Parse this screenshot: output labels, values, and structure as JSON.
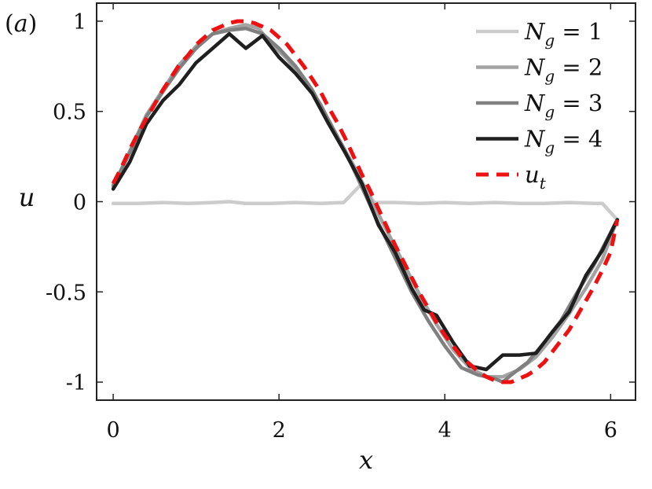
{
  "panel_label": {
    "open": "(",
    "letter": "a",
    "close": ")"
  },
  "chart_data": {
    "type": "line",
    "xlabel": "x",
    "ylabel": "u",
    "xlim": [
      -0.2,
      6.3
    ],
    "ylim": [
      -1.1,
      1.1
    ],
    "xticks": [
      0,
      2,
      4,
      6
    ],
    "xtick_labels": [
      "0",
      "2",
      "4",
      "6"
    ],
    "yticks": [
      -1,
      -0.5,
      0,
      0.5,
      1
    ],
    "ytick_labels": [
      "-1",
      "-0.5",
      "0",
      "0.5",
      "1"
    ],
    "grid": false,
    "legend_position": "top-right",
    "series": [
      {
        "name": {
          "main": "N",
          "sub": "g",
          "rest": " = 1"
        },
        "color": "#cccccc",
        "dash": "solid",
        "x": [
          0.0,
          0.3,
          0.6,
          0.9,
          1.2,
          1.4,
          1.6,
          1.9,
          2.2,
          2.5,
          2.78,
          3.0,
          3.15,
          3.4,
          3.7,
          4.0,
          4.3,
          4.6,
          4.9,
          5.2,
          5.5,
          5.8,
          5.9,
          6.08
        ],
        "y": [
          -0.01,
          -0.01,
          -0.005,
          -0.01,
          -0.005,
          0.0,
          -0.01,
          -0.01,
          -0.005,
          -0.01,
          -0.005,
          0.1,
          -0.005,
          -0.005,
          -0.01,
          -0.005,
          -0.01,
          -0.005,
          -0.01,
          -0.01,
          -0.005,
          -0.01,
          -0.01,
          -0.1
        ]
      },
      {
        "name": {
          "main": "N",
          "sub": "g",
          "rest": " = 2"
        },
        "color": "#a3a3a3",
        "dash": "solid",
        "x": [
          0.0,
          0.2,
          0.4,
          0.6,
          0.8,
          1.0,
          1.2,
          1.4,
          1.6,
          1.75,
          1.9,
          2.1,
          2.3,
          2.5,
          2.7,
          2.9,
          3.1,
          3.3,
          3.5,
          3.7,
          3.9,
          4.1,
          4.3,
          4.5,
          4.7,
          4.9,
          5.1,
          5.3,
          5.5,
          5.7,
          5.9,
          6.08
        ],
        "y": [
          0.08,
          0.28,
          0.48,
          0.62,
          0.76,
          0.86,
          0.93,
          0.96,
          0.98,
          0.96,
          0.88,
          0.79,
          0.67,
          0.54,
          0.36,
          0.2,
          0.02,
          -0.16,
          -0.34,
          -0.52,
          -0.68,
          -0.82,
          -0.92,
          -0.97,
          -0.97,
          -0.93,
          -0.86,
          -0.75,
          -0.62,
          -0.48,
          -0.32,
          -0.1
        ]
      },
      {
        "name": {
          "main": "N",
          "sub": "g",
          "rest": " = 3"
        },
        "color": "#808080",
        "dash": "solid",
        "x": [
          0.0,
          0.2,
          0.4,
          0.6,
          0.8,
          1.0,
          1.2,
          1.4,
          1.6,
          1.8,
          2.0,
          2.2,
          2.4,
          2.6,
          2.8,
          3.0,
          3.2,
          3.4,
          3.6,
          3.8,
          4.0,
          4.2,
          4.4,
          4.6,
          4.7,
          4.8,
          5.0,
          5.2,
          5.4,
          5.6,
          5.8,
          6.08
        ],
        "y": [
          0.09,
          0.27,
          0.47,
          0.61,
          0.74,
          0.85,
          0.93,
          0.95,
          0.96,
          0.93,
          0.85,
          0.75,
          0.62,
          0.45,
          0.28,
          0.08,
          -0.12,
          -0.31,
          -0.5,
          -0.66,
          -0.8,
          -0.92,
          -0.96,
          -0.98,
          -1.0,
          -0.96,
          -0.89,
          -0.78,
          -0.66,
          -0.5,
          -0.35,
          -0.1
        ]
      },
      {
        "name": {
          "main": "N",
          "sub": "g",
          "rest": " = 4"
        },
        "color": "#1f1f1f",
        "dash": "solid",
        "x": [
          0.0,
          0.2,
          0.4,
          0.6,
          0.8,
          1.0,
          1.2,
          1.4,
          1.6,
          1.8,
          2.0,
          2.2,
          2.4,
          2.6,
          2.8,
          3.0,
          3.2,
          3.4,
          3.6,
          3.75,
          3.9,
          4.1,
          4.3,
          4.5,
          4.7,
          4.9,
          5.1,
          5.3,
          5.5,
          5.7,
          5.9,
          6.08
        ],
        "y": [
          0.07,
          0.22,
          0.43,
          0.56,
          0.65,
          0.77,
          0.85,
          0.93,
          0.85,
          0.92,
          0.8,
          0.71,
          0.6,
          0.43,
          0.27,
          0.1,
          -0.13,
          -0.28,
          -0.48,
          -0.6,
          -0.63,
          -0.78,
          -0.91,
          -0.93,
          -0.85,
          -0.85,
          -0.84,
          -0.72,
          -0.61,
          -0.41,
          -0.27,
          -0.1
        ]
      },
      {
        "name": {
          "main": "u",
          "sub": "t",
          "rest": ""
        },
        "color": "#ee1111",
        "dash": "dashed",
        "x": [
          0.0,
          0.1,
          0.2,
          0.3,
          0.4,
          0.5,
          0.6,
          0.7,
          0.8,
          0.9,
          1.0,
          1.1,
          1.2,
          1.3,
          1.4,
          1.5,
          1.6,
          1.7,
          1.8,
          1.9,
          2.0,
          2.1,
          2.2,
          2.3,
          2.4,
          2.5,
          2.6,
          2.7,
          2.8,
          2.9,
          3.0,
          3.1,
          3.2,
          3.3,
          3.4,
          3.5,
          3.6,
          3.7,
          3.8,
          3.9,
          4.0,
          4.1,
          4.2,
          4.3,
          4.4,
          4.5,
          4.6,
          4.7,
          4.8,
          4.9,
          5.0,
          5.1,
          5.2,
          5.3,
          5.4,
          5.5,
          5.6,
          5.7,
          5.8,
          5.9,
          6.0,
          6.08
        ],
        "y": [
          0.1,
          0.19,
          0.29,
          0.38,
          0.46,
          0.54,
          0.62,
          0.69,
          0.76,
          0.81,
          0.87,
          0.91,
          0.95,
          0.97,
          0.99,
          1.0,
          1.0,
          0.99,
          0.97,
          0.95,
          0.91,
          0.87,
          0.81,
          0.75,
          0.68,
          0.61,
          0.52,
          0.44,
          0.35,
          0.25,
          0.15,
          0.06,
          -0.04,
          -0.14,
          -0.24,
          -0.33,
          -0.42,
          -0.51,
          -0.59,
          -0.67,
          -0.74,
          -0.8,
          -0.86,
          -0.9,
          -0.94,
          -0.97,
          -0.99,
          -1.0,
          -1.0,
          -0.98,
          -0.96,
          -0.93,
          -0.89,
          -0.83,
          -0.77,
          -0.71,
          -0.63,
          -0.55,
          -0.47,
          -0.38,
          -0.28,
          -0.1
        ]
      }
    ]
  }
}
